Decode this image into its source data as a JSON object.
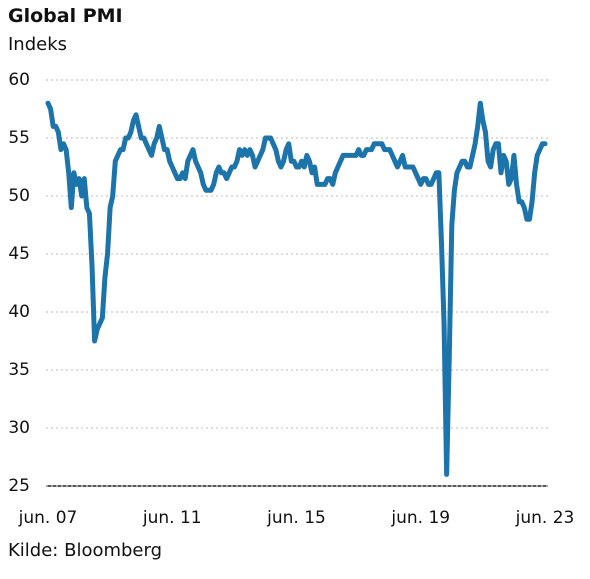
{
  "chart_data": {
    "type": "line",
    "title": "Global PMI",
    "subtitle": "Indeks",
    "source": "Kilde: Bloomberg",
    "color": "#1c74ab",
    "ylim": [
      25,
      60
    ],
    "yticks": [
      25,
      30,
      35,
      40,
      45,
      50,
      55,
      60
    ],
    "grid": true,
    "categories": [
      "jun. 07",
      null,
      null,
      null,
      null,
      null,
      null,
      null,
      null,
      null,
      null,
      null,
      null,
      null,
      null,
      null,
      null,
      null,
      null,
      null,
      null,
      null,
      null,
      null,
      null,
      null,
      null,
      null,
      null,
      null,
      null,
      null,
      null,
      null,
      null,
      null,
      null,
      null,
      null,
      null,
      null,
      null,
      null,
      null,
      null,
      null,
      null,
      null,
      "jun. 11",
      null,
      null,
      null,
      null,
      null,
      null,
      null,
      null,
      null,
      null,
      null,
      null,
      null,
      null,
      null,
      null,
      null,
      null,
      null,
      null,
      null,
      null,
      null,
      null,
      null,
      null,
      null,
      null,
      null,
      null,
      null,
      null,
      null,
      null,
      null,
      null,
      null,
      null,
      null,
      null,
      null,
      null,
      null,
      null,
      null,
      null,
      null,
      "jun. 15",
      null,
      null,
      null,
      null,
      null,
      null,
      null,
      null,
      null,
      null,
      null,
      null,
      null,
      null,
      null,
      null,
      null,
      null,
      null,
      null,
      null,
      null,
      null,
      null,
      null,
      null,
      null,
      null,
      null,
      null,
      null,
      null,
      null,
      null,
      null,
      null,
      null,
      null,
      null,
      null,
      null,
      null,
      null,
      null,
      null,
      null,
      null,
      "jun. 19",
      null,
      null,
      null,
      null,
      null,
      null,
      null,
      null,
      null,
      null,
      null,
      null,
      null,
      null,
      null,
      null,
      null,
      null,
      null,
      null,
      null,
      null,
      null,
      null,
      null,
      null,
      null,
      null,
      null,
      null,
      null,
      null,
      null,
      null,
      null,
      null,
      null,
      null,
      null,
      null,
      null,
      null,
      null,
      null,
      null,
      null,
      null,
      "jun. 23"
    ],
    "values": [
      58,
      57.5,
      56,
      56,
      55.5,
      54,
      54.5,
      54,
      52,
      49,
      52,
      51,
      51.5,
      50,
      51.5,
      49,
      48.5,
      44,
      37.5,
      38.5,
      39,
      39.5,
      43,
      45,
      49,
      50,
      53,
      53.5,
      54,
      54,
      55,
      55,
      55.5,
      56.5,
      57,
      56,
      55,
      55,
      54.5,
      54,
      53.5,
      54.5,
      55,
      56,
      55,
      54,
      54,
      53,
      52.5,
      52,
      51.5,
      51.5,
      52,
      51.5,
      53,
      53.5,
      54,
      53,
      52.5,
      52,
      51,
      50.5,
      50.5,
      50.5,
      51,
      52,
      52.5,
      52,
      52,
      51.5,
      52,
      52.5,
      52.5,
      53,
      54,
      53.5,
      54,
      53.5,
      54,
      53.5,
      52.5,
      53,
      53.5,
      54,
      55,
      55,
      55,
      54.5,
      54,
      53,
      52.5,
      53,
      54,
      54.5,
      53,
      53,
      52.5,
      52.5,
      53,
      52.5,
      53.5,
      53,
      52,
      52.5,
      51,
      51,
      51,
      51,
      51.5,
      51.5,
      51,
      52,
      52.5,
      53,
      53.5,
      53.5,
      53.5,
      53.5,
      53.5,
      53.5,
      54,
      53.5,
      53.5,
      54,
      54,
      54,
      54.5,
      54.5,
      54.5,
      54.5,
      54,
      54,
      54,
      53.5,
      53,
      52.5,
      53,
      53.5,
      52.5,
      52.5,
      52.5,
      52.5,
      52,
      51.5,
      51,
      51.5,
      51.5,
      51,
      51,
      51.5,
      52,
      52,
      46,
      39,
      26,
      36,
      47.5,
      50.5,
      52,
      52.5,
      53,
      53,
      52.5,
      52.5,
      53.5,
      54.5,
      56,
      58,
      56.5,
      55.5,
      53,
      52.5,
      54,
      54.5,
      54.5,
      52,
      53.5,
      53,
      51,
      51.5,
      53.5,
      51,
      49.5,
      49.5,
      49,
      48,
      48,
      49.5,
      52,
      53.5,
      54,
      54.5,
      54.5
    ]
  }
}
